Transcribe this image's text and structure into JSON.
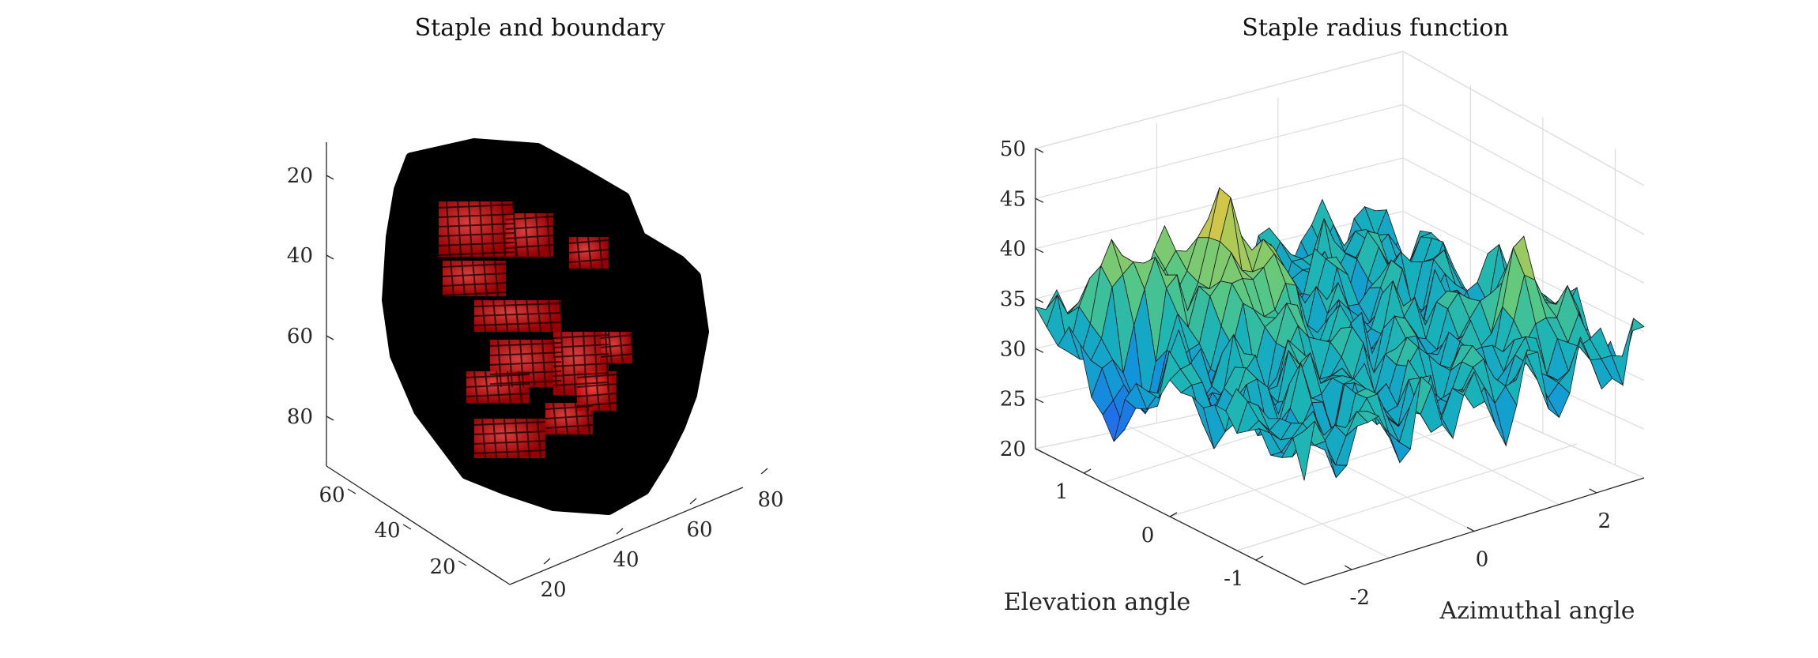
{
  "chart_data": [
    {
      "type": "scatter3d",
      "title": "Staple and boundary",
      "xlabel": "",
      "ylabel": "",
      "zlabel": "",
      "x_ticks": [
        "20",
        "40",
        "60",
        "80"
      ],
      "y_ticks": [
        "20",
        "40",
        "60"
      ],
      "z_ticks": [
        "20",
        "40",
        "60",
        "80"
      ],
      "xlim": [
        15,
        90
      ],
      "ylim": [
        15,
        70
      ],
      "zlim": [
        10,
        90
      ],
      "colors": {
        "boundary": "#000000",
        "staple": "#e41a1c"
      }
    },
    {
      "type": "surface",
      "title": "Staple radius function",
      "xlabel": "Azimuthal angle",
      "ylabel": "Elevation angle",
      "zlabel": "",
      "x_ticks": [
        "-2",
        "0",
        "2"
      ],
      "y_ticks": [
        "-1",
        "0",
        "1"
      ],
      "z_ticks": [
        "20",
        "25",
        "30",
        "35",
        "40",
        "45",
        "50"
      ],
      "xlim": [
        -3.14,
        3.14
      ],
      "ylim": [
        -1.57,
        1.57
      ],
      "zlim": [
        20,
        50
      ],
      "colormap": "parula",
      "grid": true
    }
  ]
}
